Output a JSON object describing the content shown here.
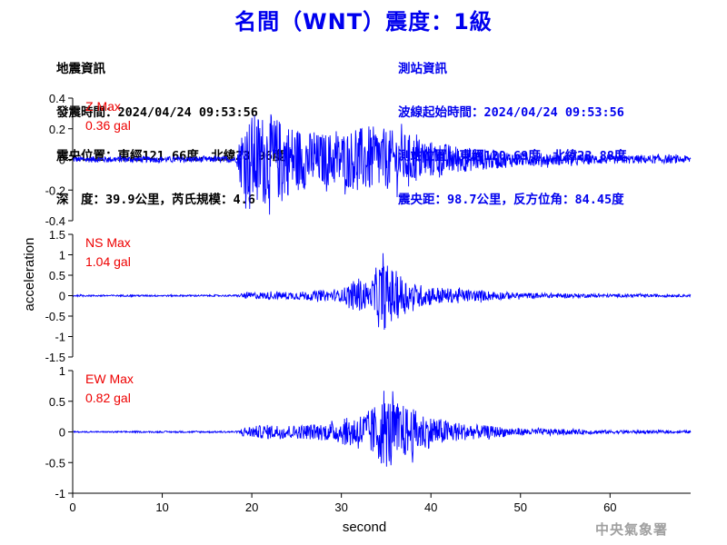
{
  "title": "名間（WNT）震度：1級",
  "quake_info": {
    "heading": "地震資訊",
    "time": "發震時間：2024/04/24 09:53:56",
    "epicenter": "震央位置：東經121.66度，北緯23.96度",
    "depth_magnitude": "深　度：39.9公里，芮氏規模：4.6"
  },
  "station_info": {
    "heading": "測站資訊",
    "wave_start": "波線起始時間：2024/04/24 09:53:56",
    "station_location": "測站位置：東經120.69度，北緯23.88度",
    "distance_azimuth": "震央距：98.7公里，反方位角：84.45度"
  },
  "agency": "中央氣象署",
  "chart_data": {
    "type": "line",
    "xlabel": "second",
    "ylabel": "acceleration",
    "xlim": [
      0,
      69
    ],
    "xticks": [
      0,
      10,
      20,
      30,
      40,
      50,
      60
    ],
    "series_color": "#0000ff",
    "max_label_color": "#ee0000",
    "panels": [
      {
        "name": "Z",
        "max_label": "Z Max",
        "max_value": "0.36 gal",
        "max": 0.36,
        "ylim": [
          -0.4,
          0.4
        ],
        "yticks": [
          -0.4,
          -0.2,
          0,
          0.2,
          0.4
        ],
        "envelope": [
          [
            0,
            0.02
          ],
          [
            18.3,
            0.02
          ],
          [
            18.8,
            0.2
          ],
          [
            20,
            0.3
          ],
          [
            22,
            0.3
          ],
          [
            24,
            0.24
          ],
          [
            27,
            0.17
          ],
          [
            30,
            0.18
          ],
          [
            33,
            0.22
          ],
          [
            35,
            0.2
          ],
          [
            38,
            0.16
          ],
          [
            40,
            0.12
          ],
          [
            44,
            0.08
          ],
          [
            50,
            0.045
          ],
          [
            60,
            0.03
          ],
          [
            69,
            0.025
          ]
        ]
      },
      {
        "name": "NS",
        "max_label": "NS Max",
        "max_value": "1.04 gal",
        "max": 1.04,
        "ylim": [
          -1.5,
          1.5
        ],
        "yticks": [
          -1.5,
          -1,
          -0.5,
          0,
          0.5,
          1,
          1.5
        ],
        "envelope": [
          [
            0,
            0.02
          ],
          [
            18.5,
            0.02
          ],
          [
            19,
            0.08
          ],
          [
            25,
            0.1
          ],
          [
            30,
            0.14
          ],
          [
            31,
            0.35
          ],
          [
            32.5,
            0.4
          ],
          [
            33.3,
            0.2
          ],
          [
            33.6,
            0.6
          ],
          [
            34.5,
            0.9
          ],
          [
            35.5,
            0.7
          ],
          [
            36.5,
            0.55
          ],
          [
            38,
            0.3
          ],
          [
            42,
            0.18
          ],
          [
            50,
            0.07
          ],
          [
            60,
            0.04
          ],
          [
            69,
            0.03
          ]
        ]
      },
      {
        "name": "EW",
        "max_label": "EW Max",
        "max_value": "0.82 gal",
        "max": 0.82,
        "ylim": [
          -1,
          1
        ],
        "yticks": [
          -1,
          -0.5,
          0,
          0.5,
          1
        ],
        "envelope": [
          [
            0,
            0.01
          ],
          [
            18.5,
            0.015
          ],
          [
            19,
            0.08
          ],
          [
            22,
            0.12
          ],
          [
            25,
            0.11
          ],
          [
            29,
            0.15
          ],
          [
            31,
            0.25
          ],
          [
            33,
            0.35
          ],
          [
            35,
            0.6
          ],
          [
            36,
            0.5
          ],
          [
            38,
            0.38
          ],
          [
            40,
            0.25
          ],
          [
            44,
            0.13
          ],
          [
            50,
            0.06
          ],
          [
            60,
            0.03
          ],
          [
            69,
            0.02
          ]
        ]
      }
    ]
  }
}
